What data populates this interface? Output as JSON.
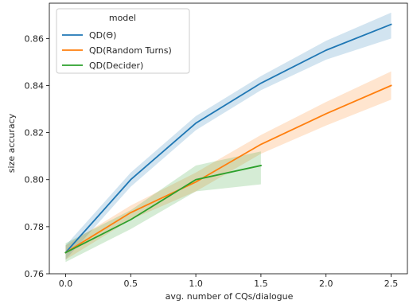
{
  "chart_data": {
    "type": "line",
    "xlabel": "avg. number of CQs/dialogue",
    "ylabel": "size accuracy",
    "xlim": [
      -0.125,
      2.625
    ],
    "ylim": [
      0.76,
      0.875
    ],
    "xticks": [
      0.0,
      0.5,
      1.0,
      1.5,
      2.0,
      2.5
    ],
    "xtick_labels": [
      "0.0",
      "0.5",
      "1.0",
      "1.5",
      "2.0",
      "2.5"
    ],
    "yticks": [
      0.76,
      0.78,
      0.8,
      0.82,
      0.84,
      0.86
    ],
    "ytick_labels": [
      "0.76",
      "0.78",
      "0.80",
      "0.82",
      "0.84",
      "0.86"
    ],
    "grid": false,
    "legend": {
      "title": "model",
      "placement": "top-left"
    },
    "series": [
      {
        "name": "QD(Θ)",
        "color": "#1f77b4",
        "x": [
          0.0,
          0.5,
          1.0,
          1.5,
          2.0,
          2.5
        ],
        "y": [
          0.769,
          0.8,
          0.824,
          0.841,
          0.855,
          0.866
        ],
        "ci_low": [
          0.766,
          0.797,
          0.821,
          0.838,
          0.851,
          0.86
        ],
        "ci_high": [
          0.772,
          0.803,
          0.827,
          0.844,
          0.859,
          0.871
        ]
      },
      {
        "name": "QD(Random Turns)",
        "color": "#ff7f0e",
        "x": [
          0.0,
          0.5,
          1.0,
          1.5,
          2.0,
          2.5
        ],
        "y": [
          0.769,
          0.786,
          0.799,
          0.815,
          0.828,
          0.84
        ],
        "ci_low": [
          0.766,
          0.783,
          0.795,
          0.811,
          0.823,
          0.834
        ],
        "ci_high": [
          0.772,
          0.789,
          0.803,
          0.819,
          0.833,
          0.846
        ]
      },
      {
        "name": "QD(Decider)",
        "color": "#2ca02c",
        "x": [
          0.0,
          0.5,
          1.0,
          1.5
        ],
        "y": [
          0.769,
          0.783,
          0.8,
          0.806
        ],
        "ci_low": [
          0.765,
          0.779,
          0.795,
          0.798
        ],
        "ci_high": [
          0.773,
          0.787,
          0.806,
          0.812
        ]
      }
    ]
  }
}
